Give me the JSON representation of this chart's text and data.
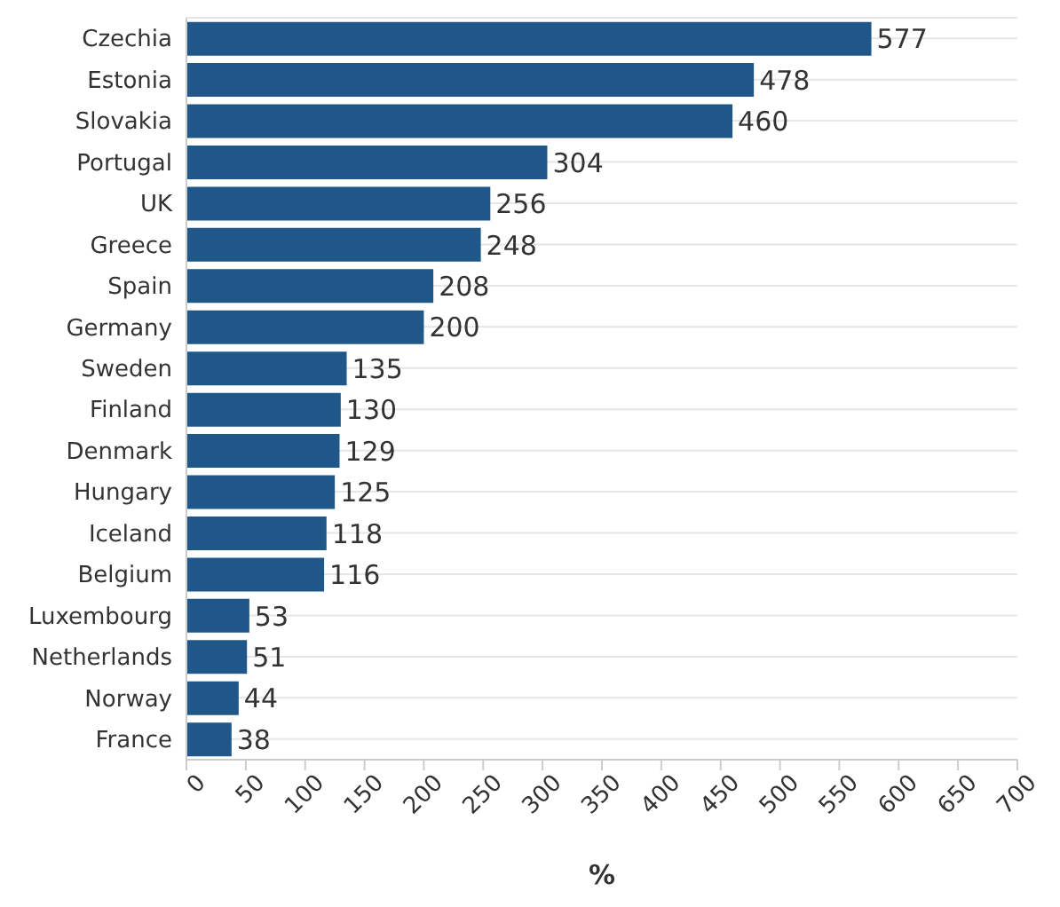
{
  "chart_data": {
    "type": "bar",
    "orientation": "horizontal",
    "xlabel": "%",
    "categories": [
      "Czechia",
      "Estonia",
      "Slovakia",
      "Portugal",
      "UK",
      "Greece",
      "Spain",
      "Germany",
      "Sweden",
      "Finland",
      "Denmark",
      "Hungary",
      "Iceland",
      "Belgium",
      "Luxembourg",
      "Netherlands",
      "Norway",
      "France"
    ],
    "values": [
      577,
      478,
      460,
      304,
      256,
      248,
      208,
      200,
      135,
      130,
      129,
      125,
      118,
      116,
      53,
      51,
      44,
      38
    ],
    "color": "#1f5788",
    "xlim": [
      0,
      700
    ],
    "xticks": [
      0,
      50,
      100,
      150,
      200,
      250,
      300,
      350,
      400,
      450,
      500,
      550,
      600,
      650,
      700
    ],
    "grid": "y",
    "data_labels": true
  }
}
